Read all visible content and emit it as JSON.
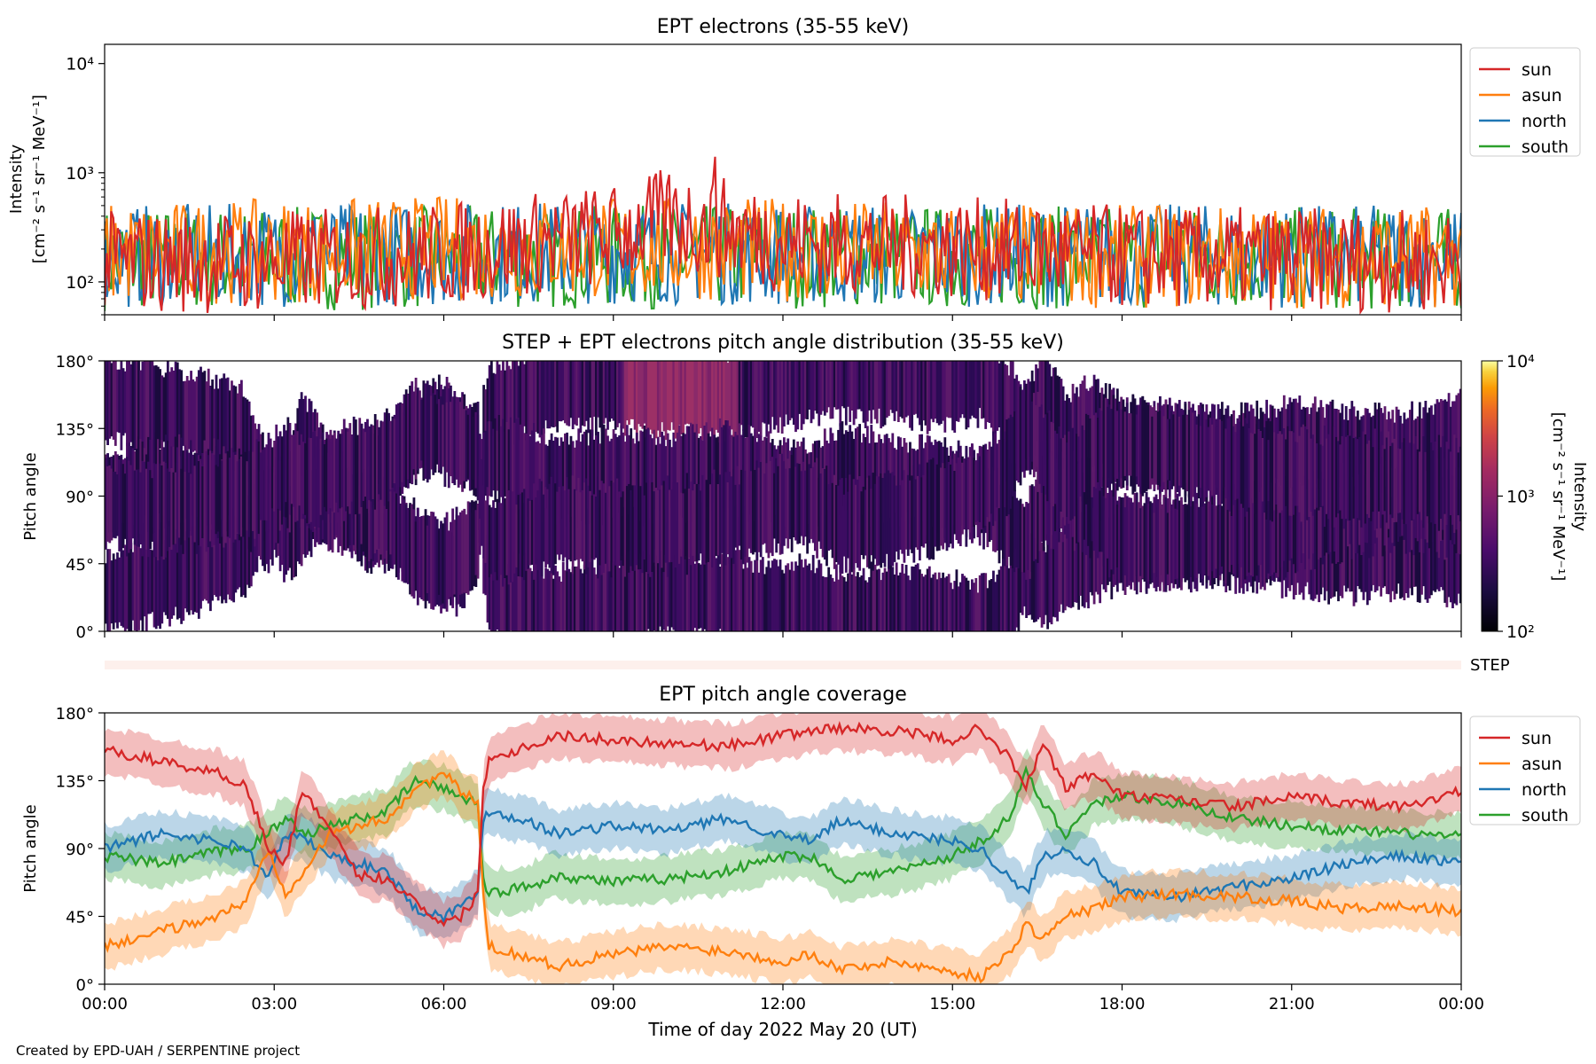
{
  "footer_credit": "Created by EPD-UAH / SERPENTINE project",
  "colors": {
    "sun": "#d62728",
    "asun": "#ff7f0e",
    "north": "#1f77b4",
    "south": "#2ca02c",
    "step_bar": "#fdf0ec"
  },
  "chart_data": [
    {
      "type": "line",
      "title": "EPT electrons (35-55 keV)",
      "ylabel": "Intensity",
      "yunit": "[cm⁻² s⁻¹ sr⁻¹ MeV⁻¹]",
      "yscale": "log",
      "ylim": [
        50,
        15000
      ],
      "yticks": [
        {
          "v": 100,
          "label": "10²"
        },
        {
          "v": 1000,
          "label": "10³"
        },
        {
          "v": 10000,
          "label": "10⁴"
        }
      ],
      "xlim": [
        "00:00",
        "24:00"
      ],
      "legend": {
        "placement": "outside-right",
        "entries": [
          "sun",
          "asun",
          "north",
          "south"
        ]
      },
      "series": [
        {
          "name": "sun",
          "baseline": [
            [
              0,
              170
            ],
            [
              3,
              170
            ],
            [
              6,
              200
            ],
            [
              9,
              300
            ],
            [
              10,
              420
            ],
            [
              12,
              260
            ],
            [
              15,
              230
            ],
            [
              18,
              190
            ],
            [
              21,
              180
            ],
            [
              24,
              170
            ]
          ],
          "peak": 1400,
          "peak_x": 10.8
        },
        {
          "name": "asun",
          "baseline": [
            [
              0,
              200
            ],
            [
              6,
              230
            ],
            [
              9,
              230
            ],
            [
              12,
              220
            ],
            [
              15,
              200
            ],
            [
              18,
              190
            ],
            [
              24,
              190
            ]
          ]
        },
        {
          "name": "north",
          "baseline": [
            [
              0,
              190
            ],
            [
              9,
              210
            ],
            [
              12,
              200
            ],
            [
              24,
              190
            ]
          ]
        },
        {
          "name": "south",
          "baseline": [
            [
              0,
              180
            ],
            [
              12,
              190
            ],
            [
              24,
              180
            ]
          ]
        }
      ]
    },
    {
      "type": "heatmap",
      "title": "STEP + EPT electrons pitch angle distribution (35-55 keV)",
      "ylabel": "Pitch angle",
      "ylim": [
        0,
        180
      ],
      "yticks": [
        "0°",
        "45°",
        "90°",
        "135°",
        "180°"
      ],
      "xlim": [
        "00:00",
        "24:00"
      ],
      "colorbar": {
        "label": "Intensity",
        "unit": "[cm⁻² s⁻¹ sr⁻¹ MeV⁻¹]",
        "scale": "log",
        "range": [
          100,
          10000
        ],
        "ticks": [
          "10²",
          "10³",
          "10⁴"
        ],
        "colormap": "inferno"
      },
      "sub_label": "STEP"
    },
    {
      "type": "line",
      "title": "EPT pitch angle coverage",
      "ylabel": "Pitch angle",
      "xlabel": "Time of day 2022 May 20 (UT)",
      "ylim": [
        0,
        180
      ],
      "yticks": [
        "0°",
        "45°",
        "90°",
        "135°",
        "180°"
      ],
      "xticks": [
        "00:00",
        "03:00",
        "06:00",
        "09:00",
        "12:00",
        "15:00",
        "18:00",
        "21:00",
        "00:00"
      ],
      "legend": {
        "placement": "outside-right",
        "entries": [
          "sun",
          "asun",
          "north",
          "south"
        ]
      },
      "series": [
        {
          "name": "sun",
          "band": 15,
          "x": [
            0,
            1,
            2,
            2.5,
            2.9,
            3.2,
            3.5,
            4,
            4.5,
            5,
            5.5,
            6,
            6.3,
            6.6,
            6.7,
            6.8,
            7.5,
            8,
            9,
            10,
            11,
            12,
            12.5,
            13,
            14,
            15,
            15.5,
            16,
            16.3,
            16.6,
            17,
            17.5,
            18,
            19,
            20,
            21,
            22,
            23,
            24
          ],
          "y": [
            155,
            148,
            140,
            132,
            90,
            80,
            130,
            100,
            72,
            70,
            55,
            40,
            45,
            60,
            130,
            150,
            158,
            165,
            162,
            160,
            158,
            165,
            168,
            170,
            168,
            162,
            170,
            150,
            130,
            160,
            130,
            140,
            125,
            122,
            118,
            124,
            120,
            118,
            128
          ]
        },
        {
          "name": "asun",
          "band": 15,
          "x": [
            0,
            1,
            2,
            2.5,
            2.9,
            3.2,
            3.6,
            4,
            4.5,
            5,
            5.5,
            6,
            6.3,
            6.6,
            6.7,
            6.8,
            7.5,
            8,
            9,
            10,
            11,
            12,
            12.5,
            13,
            14,
            15,
            15.5,
            16,
            16.3,
            16.6,
            17,
            17.5,
            18,
            19,
            20,
            21,
            22,
            23,
            24
          ],
          "y": [
            25,
            35,
            45,
            55,
            90,
            60,
            80,
            100,
            105,
            110,
            130,
            140,
            128,
            120,
            60,
            25,
            18,
            12,
            20,
            25,
            22,
            15,
            20,
            10,
            15,
            8,
            5,
            20,
            40,
            30,
            45,
            50,
            58,
            60,
            58,
            55,
            50,
            52,
            48
          ]
        },
        {
          "name": "north",
          "band": 15,
          "x": [
            0,
            1,
            2,
            2.5,
            2.9,
            3.2,
            3.6,
            4,
            4.5,
            5,
            5.5,
            6,
            6.3,
            6.6,
            6.7,
            6.8,
            7.5,
            8,
            9,
            10,
            11,
            12,
            12.5,
            13,
            14,
            15,
            15.5,
            16,
            16.3,
            16.6,
            17,
            17.5,
            18,
            19,
            20,
            21,
            22,
            23,
            24
          ],
          "y": [
            90,
            100,
            95,
            90,
            70,
            100,
            95,
            85,
            80,
            75,
            50,
            45,
            52,
            60,
            110,
            115,
            108,
            100,
            105,
            102,
            110,
            98,
            95,
            108,
            100,
            95,
            90,
            70,
            60,
            85,
            90,
            80,
            60,
            58,
            65,
            70,
            80,
            85,
            80
          ]
        },
        {
          "name": "south",
          "band": 15,
          "x": [
            0,
            1,
            2,
            2.5,
            2.9,
            3.2,
            3.6,
            4,
            4.5,
            5,
            5.5,
            6,
            6.3,
            6.6,
            6.7,
            6.8,
            7.5,
            8,
            9,
            10,
            11,
            12,
            12.5,
            13,
            14,
            15,
            15.5,
            16,
            16.3,
            16.6,
            17,
            17.5,
            18,
            19,
            20,
            21,
            22,
            23,
            24
          ],
          "y": [
            85,
            80,
            88,
            90,
            100,
            110,
            100,
            105,
            110,
            115,
            135,
            130,
            125,
            120,
            70,
            60,
            65,
            72,
            68,
            70,
            75,
            85,
            85,
            70,
            75,
            85,
            95,
            110,
            140,
            120,
            100,
            120,
            125,
            120,
            110,
            105,
            102,
            100,
            98
          ]
        }
      ]
    }
  ]
}
